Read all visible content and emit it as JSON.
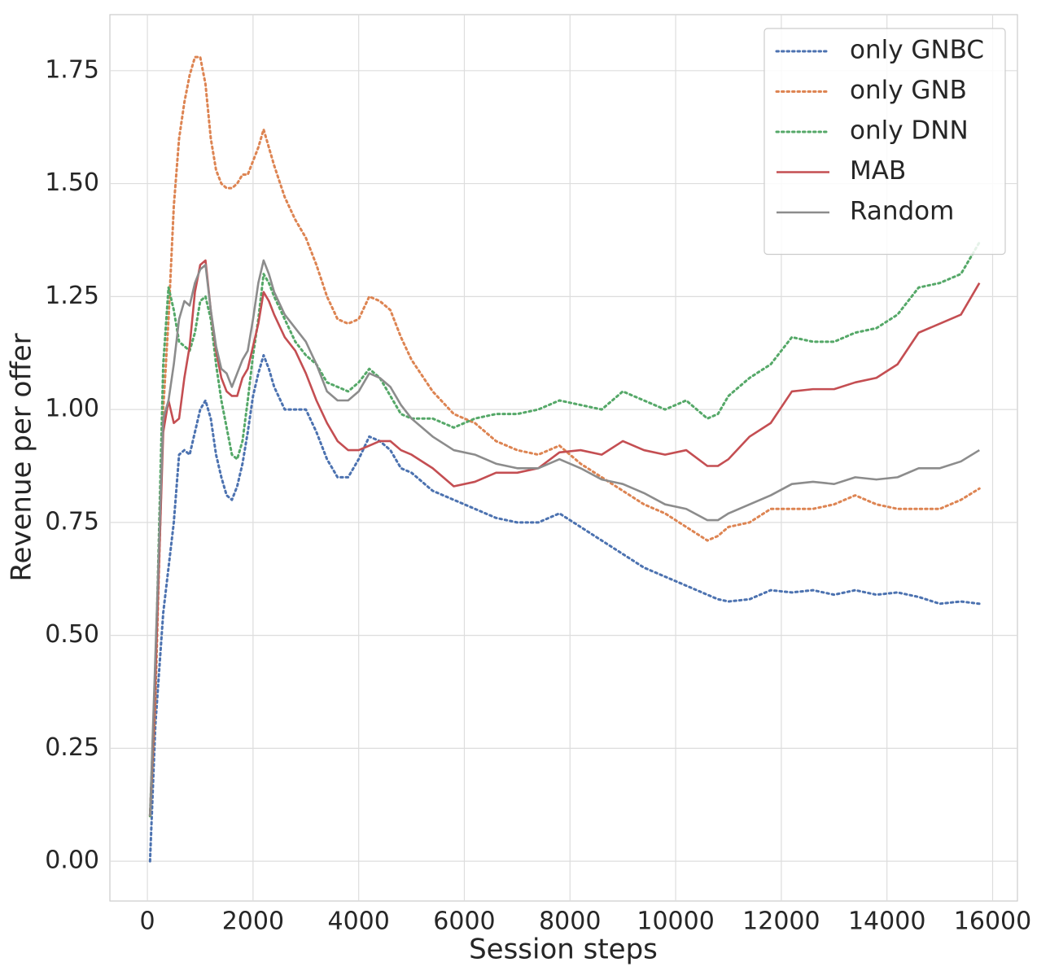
{
  "chart_data": {
    "type": "line",
    "xlabel": "Session steps",
    "ylabel": "Revenue per offer",
    "xlim": [
      -710,
      16470
    ],
    "ylim": [
      -0.088,
      1.874
    ],
    "xticks": [
      0,
      2000,
      4000,
      6000,
      8000,
      10000,
      12000,
      14000,
      16000
    ],
    "yticks": [
      {
        "value": 0,
        "label": "0.00"
      },
      {
        "value": 0.25,
        "label": "0.25"
      },
      {
        "value": 0.5,
        "label": "0.50"
      },
      {
        "value": 0.75,
        "label": "0.75"
      },
      {
        "value": 1,
        "label": "1.00"
      },
      {
        "value": 1.25,
        "label": "1.25"
      },
      {
        "value": 1.5,
        "label": "1.50"
      },
      {
        "value": 1.75,
        "label": "1.75"
      }
    ],
    "grid": true,
    "legend": "upper right",
    "x": [
      50,
      150,
      300,
      400,
      500,
      600,
      700,
      800,
      900,
      1000,
      1100,
      1200,
      1300,
      1400,
      1500,
      1600,
      1700,
      1800,
      1900,
      2000,
      2100,
      2200,
      2300,
      2400,
      2600,
      2800,
      3000,
      3200,
      3400,
      3600,
      3800,
      4000,
      4200,
      4400,
      4600,
      4800,
      5000,
      5400,
      5800,
      6200,
      6600,
      7000,
      7400,
      7800,
      8200,
      8600,
      9000,
      9400,
      9800,
      10200,
      10600,
      10800,
      11000,
      11400,
      11800,
      12200,
      12600,
      13000,
      13400,
      13800,
      14200,
      14600,
      15000,
      15400,
      15750
    ],
    "series": [
      {
        "name": "only GNBC",
        "color": "#4c72b0",
        "linestyle": "dotted",
        "values": [
          0,
          0.3,
          0.55,
          0.65,
          0.75,
          0.9,
          0.91,
          0.9,
          0.95,
          1.0,
          1.02,
          0.98,
          0.9,
          0.85,
          0.81,
          0.8,
          0.83,
          0.88,
          0.95,
          1.03,
          1.08,
          1.12,
          1.09,
          1.05,
          1.0,
          1.0,
          1.0,
          0.95,
          0.89,
          0.85,
          0.85,
          0.89,
          0.94,
          0.93,
          0.91,
          0.87,
          0.86,
          0.82,
          0.8,
          0.78,
          0.76,
          0.75,
          0.75,
          0.77,
          0.74,
          0.71,
          0.68,
          0.65,
          0.63,
          0.61,
          0.59,
          0.58,
          0.575,
          0.58,
          0.6,
          0.595,
          0.6,
          0.59,
          0.6,
          0.59,
          0.595,
          0.585,
          0.57,
          0.575,
          0.57
        ]
      },
      {
        "name": "only GNB",
        "color": "#dd8452",
        "linestyle": "dotted",
        "values": [
          0.1,
          0.35,
          1.0,
          1.2,
          1.45,
          1.6,
          1.68,
          1.74,
          1.78,
          1.78,
          1.72,
          1.6,
          1.53,
          1.5,
          1.49,
          1.49,
          1.5,
          1.52,
          1.52,
          1.55,
          1.58,
          1.62,
          1.58,
          1.54,
          1.47,
          1.42,
          1.38,
          1.32,
          1.25,
          1.2,
          1.19,
          1.2,
          1.25,
          1.24,
          1.22,
          1.16,
          1.11,
          1.04,
          0.99,
          0.97,
          0.93,
          0.91,
          0.9,
          0.92,
          0.88,
          0.85,
          0.82,
          0.79,
          0.77,
          0.74,
          0.71,
          0.72,
          0.74,
          0.75,
          0.78,
          0.78,
          0.78,
          0.79,
          0.81,
          0.79,
          0.78,
          0.78,
          0.78,
          0.8,
          0.825
        ]
      },
      {
        "name": "only DNN",
        "color": "#55a868",
        "linestyle": "dotted",
        "values": [
          0.1,
          0.4,
          1.1,
          1.27,
          1.22,
          1.15,
          1.14,
          1.13,
          1.17,
          1.24,
          1.25,
          1.2,
          1.1,
          1.02,
          0.96,
          0.9,
          0.89,
          0.93,
          1.02,
          1.12,
          1.2,
          1.3,
          1.28,
          1.25,
          1.2,
          1.15,
          1.12,
          1.1,
          1.06,
          1.05,
          1.04,
          1.06,
          1.09,
          1.07,
          1.03,
          0.99,
          0.98,
          0.98,
          0.96,
          0.98,
          0.99,
          0.99,
          1.0,
          1.02,
          1.01,
          1.0,
          1.04,
          1.02,
          1.0,
          1.02,
          0.98,
          0.99,
          1.03,
          1.07,
          1.1,
          1.16,
          1.15,
          1.15,
          1.17,
          1.18,
          1.21,
          1.27,
          1.28,
          1.3,
          1.37
        ]
      },
      {
        "name": "MAB",
        "color": "#c44e52",
        "linestyle": "solid",
        "values": [
          0.1,
          0.4,
          0.95,
          1.02,
          0.97,
          0.98,
          1.07,
          1.14,
          1.26,
          1.32,
          1.33,
          1.22,
          1.13,
          1.07,
          1.04,
          1.03,
          1.03,
          1.07,
          1.09,
          1.14,
          1.19,
          1.26,
          1.24,
          1.21,
          1.16,
          1.13,
          1.08,
          1.02,
          0.97,
          0.93,
          0.91,
          0.91,
          0.92,
          0.93,
          0.93,
          0.91,
          0.9,
          0.87,
          0.83,
          0.84,
          0.86,
          0.86,
          0.87,
          0.905,
          0.91,
          0.9,
          0.93,
          0.91,
          0.9,
          0.91,
          0.875,
          0.875,
          0.89,
          0.94,
          0.97,
          1.04,
          1.045,
          1.045,
          1.06,
          1.07,
          1.1,
          1.17,
          1.19,
          1.21,
          1.28
        ]
      },
      {
        "name": "Random",
        "color": "#8c8c8c",
        "linestyle": "solid",
        "values": [
          0.1,
          0.45,
          0.98,
          1.02,
          1.1,
          1.2,
          1.24,
          1.23,
          1.28,
          1.31,
          1.32,
          1.22,
          1.14,
          1.09,
          1.08,
          1.05,
          1.08,
          1.11,
          1.13,
          1.2,
          1.28,
          1.33,
          1.3,
          1.26,
          1.21,
          1.18,
          1.15,
          1.1,
          1.04,
          1.02,
          1.02,
          1.04,
          1.08,
          1.07,
          1.05,
          1.01,
          0.98,
          0.94,
          0.91,
          0.9,
          0.88,
          0.87,
          0.87,
          0.89,
          0.87,
          0.845,
          0.835,
          0.815,
          0.79,
          0.78,
          0.755,
          0.755,
          0.77,
          0.79,
          0.81,
          0.835,
          0.84,
          0.835,
          0.85,
          0.845,
          0.85,
          0.87,
          0.87,
          0.885,
          0.91
        ]
      }
    ]
  }
}
